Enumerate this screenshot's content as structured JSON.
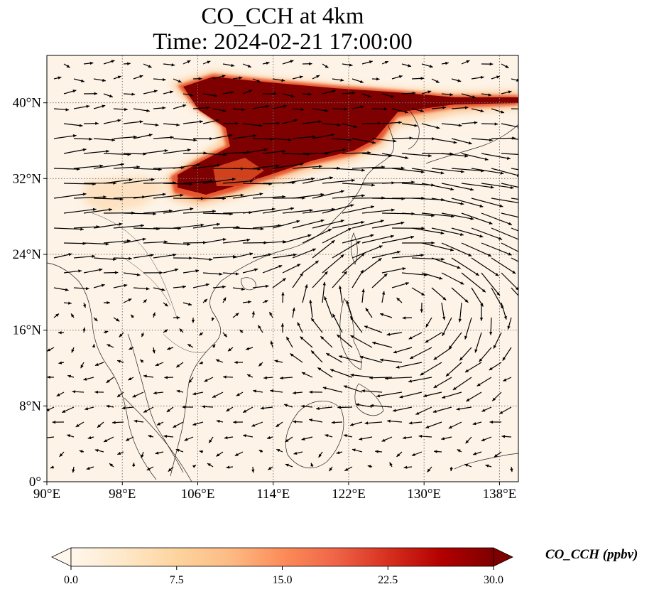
{
  "chart_data": {
    "type": "heatmap",
    "title": "CO_CCH at 4km",
    "subtitle": "Time: 2024-02-21 17:00:00",
    "xlim": [
      90,
      140
    ],
    "ylim": [
      0,
      45
    ],
    "x_ticks": [
      {
        "value": 90,
        "label": "90°E"
      },
      {
        "value": 98,
        "label": "98°E"
      },
      {
        "value": 106,
        "label": "106°E"
      },
      {
        "value": 114,
        "label": "114°E"
      },
      {
        "value": 122,
        "label": "122°E"
      },
      {
        "value": 130,
        "label": "130°E"
      },
      {
        "value": 138,
        "label": "138°E"
      }
    ],
    "y_ticks": [
      {
        "value": 0,
        "label": "0°"
      },
      {
        "value": 8,
        "label": "8°N"
      },
      {
        "value": 16,
        "label": "16°N"
      },
      {
        "value": 24,
        "label": "24°N"
      },
      {
        "value": 32,
        "label": "32°N"
      },
      {
        "value": 40,
        "label": "40°N"
      }
    ],
    "grid": true,
    "colorbar": {
      "label": "CO_CCH (ppbv)",
      "min": 0.0,
      "max": 30.0,
      "ticks": [
        "0.0",
        "7.5",
        "15.0",
        "22.5",
        "30.0"
      ],
      "extend": "both",
      "colormap": [
        "#fff7ec",
        "#fee8c8",
        "#fdd49e",
        "#fdbb84",
        "#fc8d59",
        "#ef6548",
        "#d7301f",
        "#b30000",
        "#7f0000"
      ]
    },
    "plume": {
      "description_colors": {
        "background": "#fdf3e6",
        "core": "#7f0000"
      },
      "max_ppbv": 30.0
    },
    "wind_vectors": true
  }
}
